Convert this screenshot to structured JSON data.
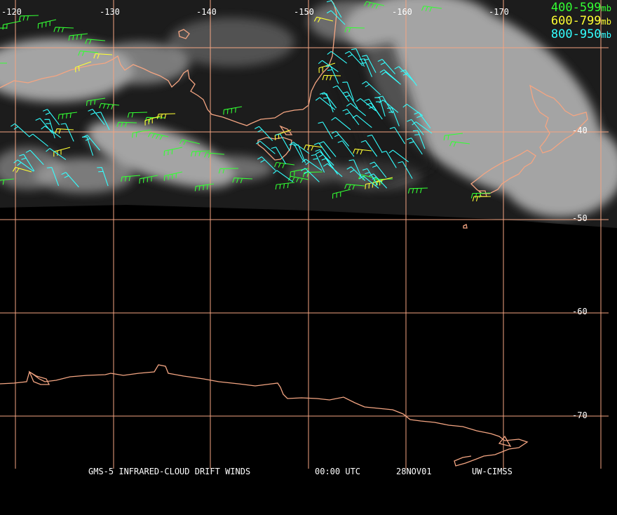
{
  "map": {
    "longitude_labels": [
      "-120",
      "-130",
      "-140",
      "-150",
      "-160",
      "-170"
    ],
    "latitude_labels": [
      "-40",
      "-50",
      "-60",
      "-70"
    ],
    "colors": {
      "background": "#000000",
      "grid": "#f4a582",
      "coastline": "#f4a582",
      "cloud": "#bdbdbd"
    }
  },
  "legend": {
    "items": [
      {
        "range": "400-599",
        "unit": "mb",
        "color": "#33ff33"
      },
      {
        "range": "600-799",
        "unit": "mb",
        "color": "#ffff33"
      },
      {
        "range": "800-950",
        "unit": "mb",
        "color": "#33ffff"
      }
    ]
  },
  "caption": {
    "product": "GMS-5 INFRARED-CLOUD DRIFT WINDS",
    "time": "00:00 UTC",
    "date": "28NOV01",
    "source": "UW-CIMSS"
  }
}
